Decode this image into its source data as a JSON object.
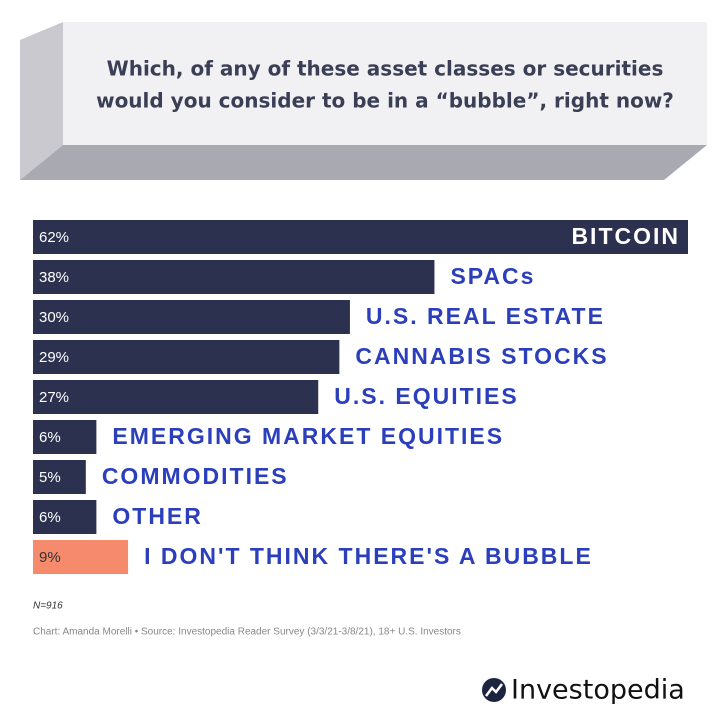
{
  "chart_data": {
    "type": "bar",
    "title": [
      "Which, of any of these asset classes or securities",
      "would you consider to be in a “bubble”, right now?"
    ],
    "categories": [
      "BITCOIN",
      "SPACs",
      "U.S.  REAL ESTATE",
      "CANNABIS STOCKS",
      "U.S. EQUITIES",
      "EMERGING MARKET EQUITIES",
      "COMMODITIES",
      "OTHER",
      "I DON'T THINK THERE'S A BUBBLE"
    ],
    "values": [
      62,
      38,
      30,
      29,
      27,
      6,
      5,
      6,
      9
    ],
    "value_labels": [
      "62%",
      "38%",
      "30%",
      "29%",
      "27%",
      "6%",
      "5%",
      "6%",
      "9%"
    ],
    "colors": [
      "#2d3150",
      "#2d3150",
      "#2d3150",
      "#2d3150",
      "#2d3150",
      "#2d3150",
      "#2d3150",
      "#2d3150",
      "#f58b6c"
    ],
    "label_color": "#2b3fbd",
    "note": "N=916",
    "source": "Chart: Amanda Morelli • Source: Investopedia Reader Survey (3/3/21-3/8/21), 18+ U.S. Investors"
  },
  "brand": "Investopedia"
}
